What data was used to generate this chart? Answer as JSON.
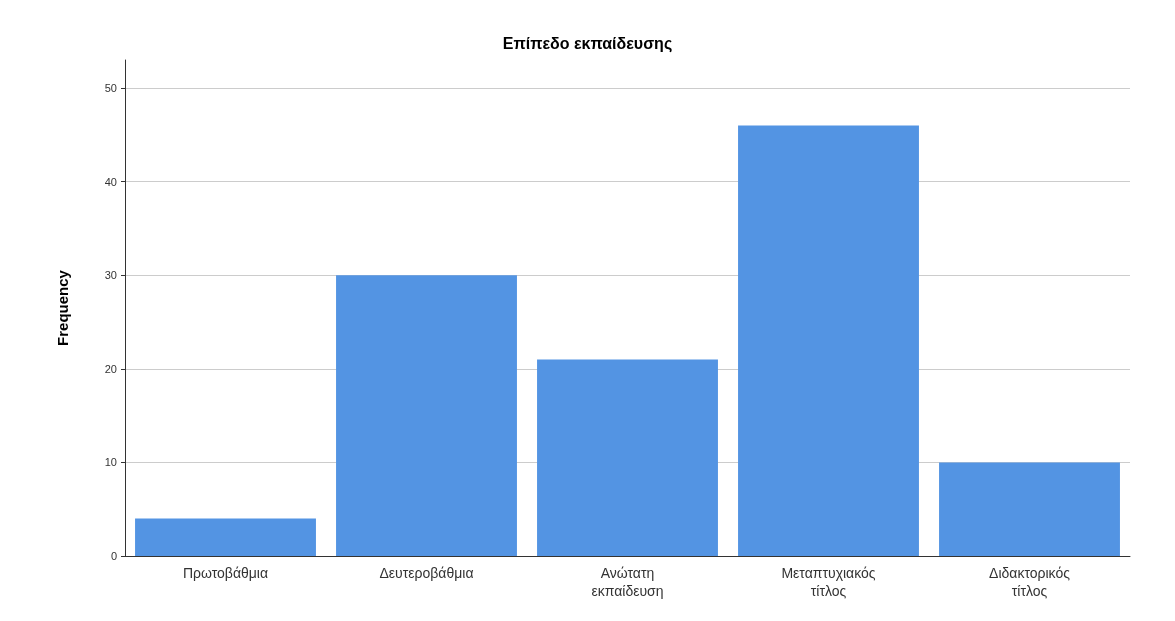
{
  "chart_data": {
    "type": "bar",
    "title": "Επίπεδο εκπαίδευσης",
    "ylabel": "Frequency",
    "categories": [
      "Πρωτοβάθμια",
      "Δευτεροβάθμια",
      "Ανώτατη εκπαίδευση",
      "Μεταπτυχιακός τίτλος",
      "Διδακτορικός τίτλος"
    ],
    "values": [
      4,
      30,
      21,
      46,
      10
    ],
    "color": "#5394e3",
    "ylim": [
      0,
      53
    ],
    "yticks": [
      0,
      10,
      20,
      30,
      40,
      50
    ],
    "grid": "y"
  }
}
